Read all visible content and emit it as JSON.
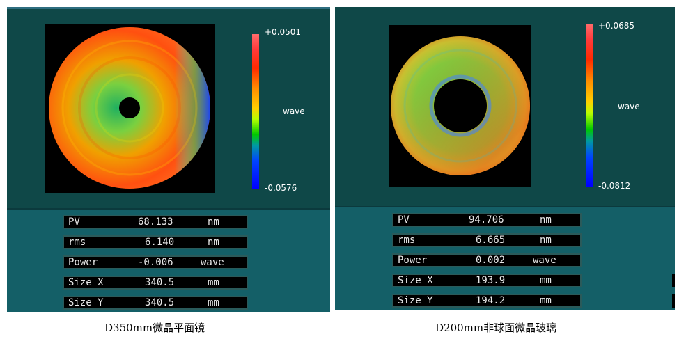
{
  "left": {
    "colorbar": {
      "max_label": "+0.0501",
      "mid_label": "wave",
      "min_label": "-0.0576"
    },
    "rows": [
      {
        "label": "PV",
        "value": "68.133",
        "unit": "nm"
      },
      {
        "label": "rms",
        "value": "6.140",
        "unit": "nm"
      },
      {
        "label": "Power",
        "value": "-0.006",
        "unit": "wave"
      },
      {
        "label": "Size X",
        "value": "340.5",
        "unit": "mm"
      },
      {
        "label": "Size Y",
        "value": "340.5",
        "unit": "mm"
      }
    ],
    "caption": "D350mm微晶平面镜"
  },
  "right": {
    "colorbar": {
      "max_label": "+0.0685",
      "mid_label": "wave",
      "min_label": "-0.0812"
    },
    "rows": [
      {
        "label": "PV",
        "value": "94.706",
        "unit": "nm"
      },
      {
        "label": "rms",
        "value": "6.665",
        "unit": "nm"
      },
      {
        "label": "Power",
        "value": "0.002",
        "unit": "wave"
      },
      {
        "label": "Size X",
        "value": "193.9",
        "unit": "mm"
      },
      {
        "label": "Size Y",
        "value": "194.2",
        "unit": "mm"
      }
    ],
    "caption": "D200mm非球面微晶玻璃"
  }
}
